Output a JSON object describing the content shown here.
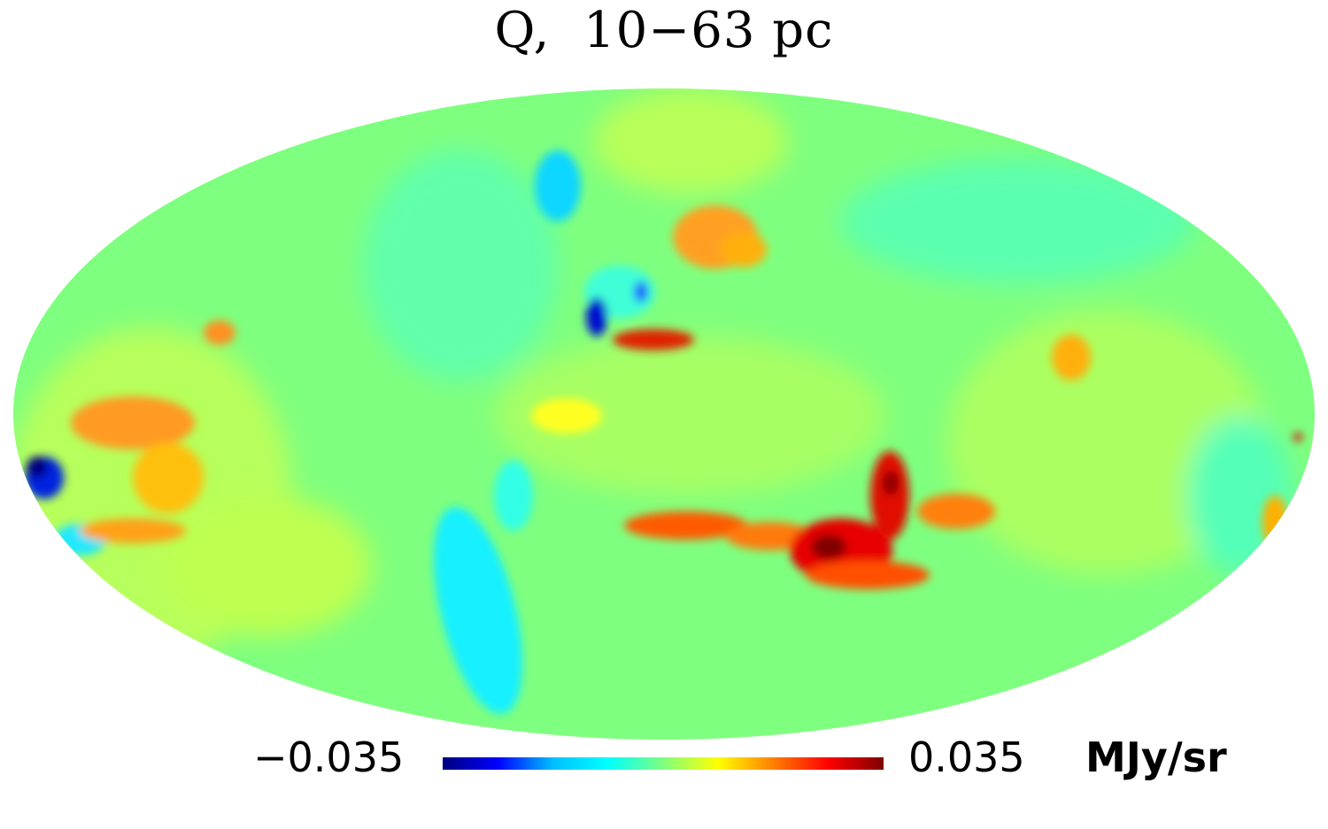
{
  "title": "Q,  10−63 pc",
  "projection": "mollweide",
  "colorbar": {
    "min_label": "−0.035",
    "max_label": "0.035",
    "unit": "MJy/sr",
    "min_value": -0.035,
    "max_value": 0.035,
    "colormap": [
      "#00007f",
      "#0000ff",
      "#00bfff",
      "#00ffff",
      "#7fff7f",
      "#ffff00",
      "#ff7f00",
      "#ff0000",
      "#7f0000"
    ]
  },
  "background_value": 0.0,
  "features": [
    {
      "name": "strong-negative-west-edge",
      "value": -0.034
    },
    {
      "name": "negative-north-clump",
      "value": -0.032
    },
    {
      "name": "negative-north-streak",
      "value": -0.012
    },
    {
      "name": "negative-lower-band",
      "value": -0.011
    },
    {
      "name": "positive-north-arc",
      "value": 0.022
    },
    {
      "name": "positive-north-small-clump",
      "value": 0.031
    },
    {
      "name": "positive-west-cloud",
      "value": 0.018
    },
    {
      "name": "positive-southern-filament",
      "value": 0.026
    },
    {
      "name": "positive-southern-core",
      "value": 0.034
    },
    {
      "name": "positive-east-patch",
      "value": 0.016
    }
  ]
}
